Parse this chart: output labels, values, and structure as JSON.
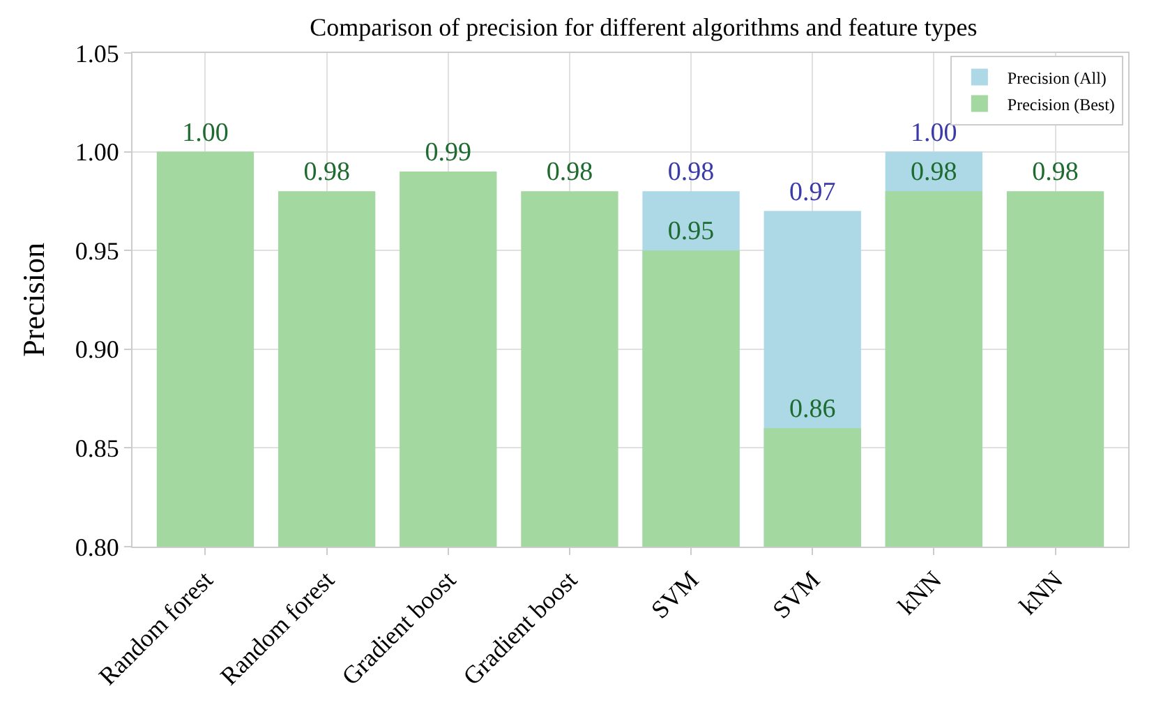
{
  "chart_data": {
    "type": "bar",
    "title": "Comparison of precision for different algorithms and feature types",
    "ylabel": "Precision",
    "categories": [
      "Random forest",
      "Random forest",
      "Gradient boost",
      "Gradient boost",
      "SVM",
      "SVM",
      "kNN",
      "kNN"
    ],
    "series": [
      {
        "name": "Precision (All)",
        "color": "#add8e6",
        "values": [
          null,
          null,
          null,
          null,
          0.98,
          0.97,
          1.0,
          null
        ],
        "value_labels": [
          null,
          null,
          null,
          null,
          "0.98",
          "0.97",
          "1.00",
          null
        ]
      },
      {
        "name": "Precision (Best)",
        "color": "#a3d8a0",
        "values": [
          1.0,
          0.98,
          0.99,
          0.98,
          0.95,
          0.86,
          0.98,
          0.98
        ],
        "value_labels": [
          "1.00",
          "0.98",
          "0.99",
          "0.98",
          "0.95",
          "0.86",
          "0.98",
          "0.98"
        ]
      }
    ],
    "ylim": [
      0.8,
      1.05
    ],
    "yticks": [
      {
        "value": 0.8,
        "label": "0.80"
      },
      {
        "value": 0.85,
        "label": "0.85"
      },
      {
        "value": 0.9,
        "label": "0.90"
      },
      {
        "value": 0.95,
        "label": "0.95"
      },
      {
        "value": 1.0,
        "label": "1.00"
      },
      {
        "value": 1.05,
        "label": "1.05"
      }
    ],
    "grid": true,
    "legend": "top right"
  }
}
